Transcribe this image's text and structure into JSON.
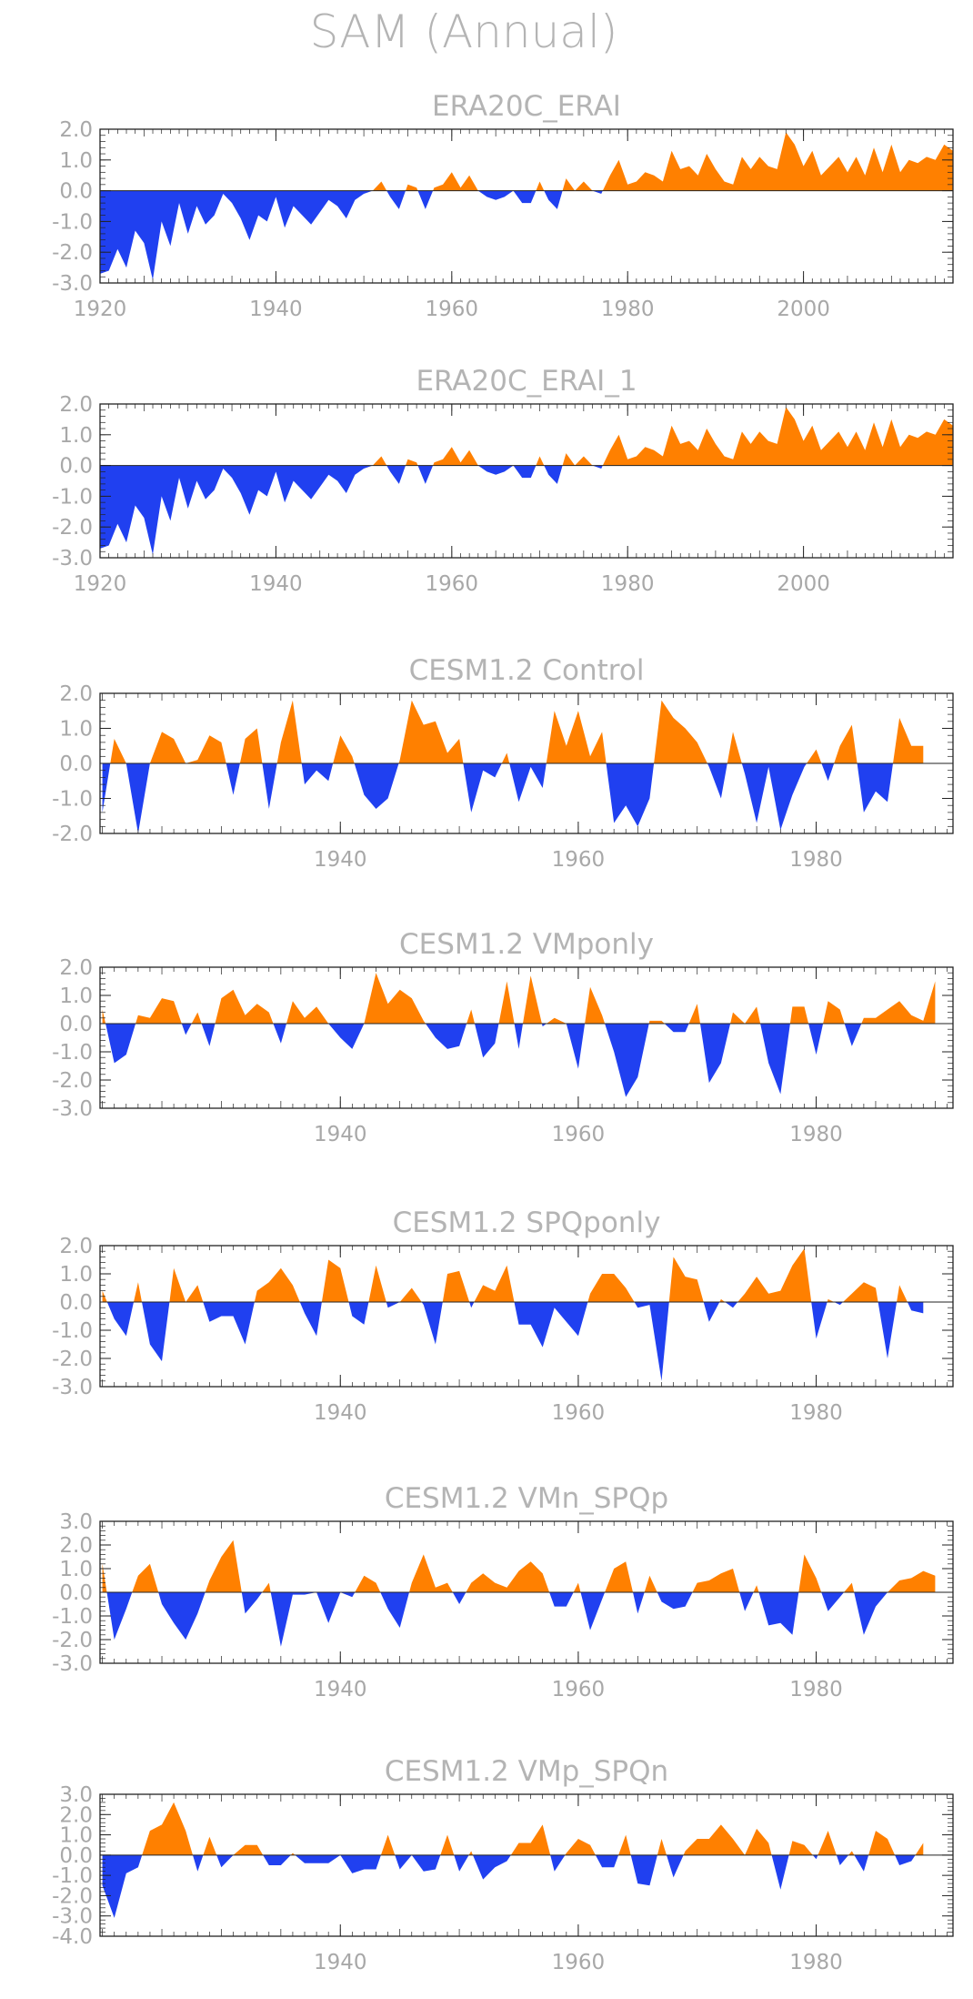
{
  "title": "SAM (Annual)",
  "colors": {
    "positive": "#ff8000",
    "negative": "#2040f0",
    "axis": "#222222",
    "text": "#b4b4b4"
  },
  "chart_data": [
    {
      "type": "area",
      "title": "ERA20C_ERAI",
      "x_start": 1920,
      "xlim": [
        1920,
        2017
      ],
      "ylim": [
        -3.0,
        2.0
      ],
      "yticks": [
        2.0,
        1.0,
        0.0,
        -1.0,
        -2.0,
        -3.0
      ],
      "ytick_labels": [
        "2.0",
        "1.0",
        "0.0",
        "-1.0",
        "-2.0",
        "-3.0"
      ],
      "xticks": [
        1920,
        1940,
        1960,
        1980,
        2000
      ],
      "xtick_labels": [
        "1920",
        "1940",
        "1960",
        "1980",
        "2000"
      ],
      "values": [
        -2.7,
        -2.6,
        -1.9,
        -2.5,
        -1.3,
        -1.7,
        -2.9,
        -1.0,
        -1.8,
        -0.4,
        -1.4,
        -0.5,
        -1.1,
        -0.8,
        -0.1,
        -0.4,
        -0.9,
        -1.6,
        -0.8,
        -1.0,
        -0.2,
        -1.2,
        -0.5,
        -0.8,
        -1.1,
        -0.7,
        -0.3,
        -0.5,
        -0.9,
        -0.3,
        -0.1,
        0.0,
        0.3,
        -0.2,
        -0.6,
        0.2,
        0.1,
        -0.6,
        0.1,
        0.2,
        0.6,
        0.1,
        0.5,
        0.0,
        -0.2,
        -0.3,
        -0.2,
        0.0,
        -0.4,
        -0.4,
        0.3,
        -0.3,
        -0.6,
        0.4,
        0.0,
        0.3,
        0.0,
        -0.1,
        0.5,
        1.0,
        0.2,
        0.3,
        0.6,
        0.5,
        0.3,
        1.3,
        0.7,
        0.8,
        0.5,
        1.2,
        0.7,
        0.3,
        0.2,
        1.1,
        0.7,
        1.1,
        0.8,
        0.7,
        1.9,
        1.5,
        0.8,
        1.3,
        0.5,
        0.8,
        1.1,
        0.6,
        1.1,
        0.5,
        1.4,
        0.6,
        1.5,
        0.6,
        1.0,
        0.9,
        1.1,
        1.0,
        1.5,
        1.3
      ]
    },
    {
      "type": "area",
      "title": "ERA20C_ERAI_1",
      "x_start": 1920,
      "xlim": [
        1920,
        2017
      ],
      "ylim": [
        -3.0,
        2.0
      ],
      "yticks": [
        2.0,
        1.0,
        0.0,
        -1.0,
        -2.0,
        -3.0
      ],
      "ytick_labels": [
        "2.0",
        "1.0",
        "0.0",
        "-1.0",
        "-2.0",
        "-3.0"
      ],
      "xticks": [
        1920,
        1940,
        1960,
        1980,
        2000
      ],
      "xtick_labels": [
        "1920",
        "1940",
        "1960",
        "1980",
        "2000"
      ],
      "values": [
        -2.7,
        -2.6,
        -1.9,
        -2.5,
        -1.3,
        -1.7,
        -2.9,
        -1.0,
        -1.8,
        -0.4,
        -1.4,
        -0.5,
        -1.1,
        -0.8,
        -0.1,
        -0.4,
        -0.9,
        -1.6,
        -0.8,
        -1.0,
        -0.2,
        -1.2,
        -0.5,
        -0.8,
        -1.1,
        -0.7,
        -0.3,
        -0.5,
        -0.9,
        -0.3,
        -0.1,
        0.0,
        0.3,
        -0.2,
        -0.6,
        0.2,
        0.1,
        -0.6,
        0.1,
        0.2,
        0.6,
        0.1,
        0.5,
        0.0,
        -0.2,
        -0.3,
        -0.2,
        0.0,
        -0.4,
        -0.4,
        0.3,
        -0.3,
        -0.6,
        0.4,
        0.0,
        0.3,
        0.0,
        -0.1,
        0.5,
        1.0,
        0.2,
        0.3,
        0.6,
        0.5,
        0.3,
        1.3,
        0.7,
        0.8,
        0.5,
        1.2,
        0.7,
        0.3,
        0.2,
        1.1,
        0.7,
        1.1,
        0.8,
        0.7,
        1.9,
        1.5,
        0.8,
        1.3,
        0.5,
        0.8,
        1.1,
        0.6,
        1.1,
        0.5,
        1.4,
        0.6,
        1.5,
        0.6,
        1.0,
        0.9,
        1.1,
        1.0,
        1.5,
        1.3
      ]
    },
    {
      "type": "area",
      "title": "CESM1.2 Control",
      "x_start": 1920,
      "xlim": [
        1919.8,
        1991.5
      ],
      "ylim": [
        -2.0,
        2.0
      ],
      "yticks": [
        2.0,
        1.0,
        0.0,
        -1.0,
        -2.0
      ],
      "ytick_labels": [
        "2.0",
        "1.0",
        "0.0",
        "-1.0",
        "-2.0"
      ],
      "xticks": [
        1940,
        1960,
        1980
      ],
      "xtick_labels": [
        "1940",
        "1960",
        "1980"
      ],
      "values": [
        -1.4,
        0.7,
        0.0,
        -2.0,
        0.0,
        0.9,
        0.7,
        0.0,
        0.1,
        0.8,
        0.6,
        -0.9,
        0.7,
        1.0,
        -1.3,
        0.6,
        1.8,
        -0.6,
        -0.2,
        -0.5,
        0.8,
        0.2,
        -0.9,
        -1.3,
        -1.0,
        0.1,
        1.8,
        1.1,
        1.2,
        0.3,
        0.7,
        -1.4,
        -0.2,
        -0.4,
        0.3,
        -1.1,
        -0.1,
        -0.7,
        1.5,
        0.5,
        1.5,
        0.2,
        0.9,
        -1.7,
        -1.2,
        -1.8,
        -1.0,
        1.8,
        1.3,
        1.0,
        0.6,
        -0.1,
        -1.0,
        0.9,
        -0.3,
        -1.7,
        -0.1,
        -1.9,
        -0.9,
        -0.1,
        0.4,
        -0.5,
        0.5,
        1.1,
        -1.4,
        -0.8,
        -1.1,
        1.3,
        0.5,
        0.5
      ]
    },
    {
      "type": "area",
      "title": "CESM1.2 VMponly",
      "x_start": 1920,
      "xlim": [
        1919.8,
        1991.5
      ],
      "ylim": [
        -3.0,
        2.0
      ],
      "yticks": [
        2.0,
        1.0,
        0.0,
        -1.0,
        -2.0,
        -3.0
      ],
      "ytick_labels": [
        "2.0",
        "1.0",
        "0.0",
        "-1.0",
        "-2.0",
        "-3.0"
      ],
      "xticks": [
        1940,
        1960,
        1980
      ],
      "xtick_labels": [
        "1940",
        "1960",
        "1980"
      ],
      "values": [
        0.5,
        -1.4,
        -1.1,
        0.3,
        0.2,
        0.9,
        0.8,
        -0.4,
        0.4,
        -0.8,
        0.9,
        1.2,
        0.3,
        0.7,
        0.4,
        -0.7,
        0.8,
        0.2,
        0.6,
        0.0,
        -0.5,
        -0.9,
        0.0,
        1.8,
        0.7,
        1.2,
        0.9,
        0.1,
        -0.5,
        -0.9,
        -0.8,
        0.5,
        -1.2,
        -0.7,
        1.5,
        -0.9,
        1.7,
        -0.1,
        0.2,
        0.0,
        -1.6,
        1.3,
        0.3,
        -1.0,
        -2.6,
        -1.9,
        0.1,
        0.1,
        -0.3,
        -0.3,
        0.7,
        -2.1,
        -1.4,
        0.4,
        0.0,
        0.6,
        -1.4,
        -2.5,
        0.6,
        0.6,
        -1.1,
        0.8,
        0.5,
        -0.8,
        0.2,
        0.2,
        0.5,
        0.8,
        0.3,
        0.1,
        1.5
      ]
    },
    {
      "type": "area",
      "title": "CESM1.2 SPQponly",
      "x_start": 1920,
      "xlim": [
        1919.8,
        1991.5
      ],
      "ylim": [
        -3.0,
        2.0
      ],
      "yticks": [
        2.0,
        1.0,
        0.0,
        -1.0,
        -2.0,
        -3.0
      ],
      "ytick_labels": [
        "2.0",
        "1.0",
        "0.0",
        "-1.0",
        "-2.0",
        "-3.0"
      ],
      "xticks": [
        1940,
        1960,
        1980
      ],
      "xtick_labels": [
        "1940",
        "1960",
        "1980"
      ],
      "values": [
        0.4,
        -0.6,
        -1.2,
        0.7,
        -1.5,
        -2.1,
        1.2,
        0.0,
        0.6,
        -0.7,
        -0.5,
        -0.5,
        -1.5,
        0.4,
        0.7,
        1.2,
        0.6,
        -0.4,
        -1.2,
        1.5,
        1.2,
        -0.5,
        -0.8,
        1.3,
        -0.2,
        0.0,
        0.5,
        -0.1,
        -1.5,
        1.0,
        1.1,
        -0.2,
        0.6,
        0.4,
        1.3,
        -0.8,
        -0.8,
        -1.6,
        -0.2,
        -0.7,
        -1.2,
        0.3,
        1.0,
        1.0,
        0.5,
        -0.2,
        -0.1,
        -2.8,
        1.6,
        0.9,
        0.8,
        -0.7,
        0.1,
        -0.2,
        0.3,
        0.9,
        0.3,
        0.4,
        1.3,
        1.9,
        -1.3,
        0.1,
        -0.1,
        0.3,
        0.7,
        0.5,
        -2.0,
        0.6,
        -0.3,
        -0.4
      ]
    },
    {
      "type": "area",
      "title": "CESM1.2 VMn_SPQp",
      "x_start": 1920,
      "xlim": [
        1919.8,
        1991.5
      ],
      "ylim": [
        -3.0,
        3.0
      ],
      "yticks": [
        3.0,
        2.0,
        1.0,
        0.0,
        -1.0,
        -2.0,
        -3.0
      ],
      "ytick_labels": [
        "3.0",
        "2.0",
        "1.0",
        "0.0",
        "-1.0",
        "-2.0",
        "-3.0"
      ],
      "xticks": [
        1940,
        1960,
        1980
      ],
      "xtick_labels": [
        "1940",
        "1960",
        "1980"
      ],
      "values": [
        1.2,
        -2.0,
        -0.7,
        0.7,
        1.2,
        -0.5,
        -1.3,
        -2.0,
        -0.9,
        0.5,
        1.5,
        2.2,
        -0.9,
        -0.3,
        0.4,
        -2.3,
        -0.1,
        -0.1,
        0.0,
        -1.3,
        0.0,
        -0.2,
        0.7,
        0.4,
        -0.7,
        -1.5,
        0.4,
        1.6,
        0.2,
        0.4,
        -0.5,
        0.4,
        0.8,
        0.4,
        0.2,
        0.9,
        1.3,
        0.8,
        -0.6,
        -0.6,
        0.4,
        -1.6,
        -0.3,
        1.0,
        1.3,
        -0.9,
        0.7,
        -0.4,
        -0.7,
        -0.6,
        0.4,
        0.5,
        0.8,
        1.0,
        -0.8,
        0.3,
        -1.4,
        -1.3,
        -1.8,
        1.6,
        0.6,
        -0.8,
        -0.2,
        0.4,
        -1.8,
        -0.6,
        0.0,
        0.5,
        0.6,
        0.9,
        0.7
      ]
    },
    {
      "type": "area",
      "title": "CESM1.2 VMp_SPQn",
      "x_start": 1920,
      "xlim": [
        1919.8,
        1991.5
      ],
      "ylim": [
        -4.0,
        3.0
      ],
      "yticks": [
        3.0,
        2.0,
        1.0,
        0.0,
        -1.0,
        -2.0,
        -3.0,
        -4.0
      ],
      "ytick_labels": [
        "3.0",
        "2.0",
        "1.0",
        "0.0",
        "-1.0",
        "-2.0",
        "-3.0",
        "-4.0"
      ],
      "xticks": [
        1940,
        1960,
        1980
      ],
      "xtick_labels": [
        "1940",
        "1960",
        "1980"
      ],
      "values": [
        -1.5,
        -3.1,
        -0.9,
        -0.6,
        1.2,
        1.5,
        2.6,
        1.2,
        -0.8,
        0.9,
        -0.6,
        0.0,
        0.5,
        0.5,
        -0.5,
        -0.5,
        0.1,
        -0.4,
        -0.4,
        -0.4,
        0.0,
        -0.9,
        -0.7,
        -0.7,
        1.0,
        -0.7,
        0.0,
        -0.8,
        -0.7,
        1.0,
        -0.8,
        0.2,
        -1.2,
        -0.6,
        -0.3,
        0.6,
        0.6,
        1.5,
        -0.8,
        0.1,
        0.8,
        0.5,
        -0.6,
        -0.6,
        1.0,
        -1.4,
        -1.5,
        0.8,
        -1.1,
        0.2,
        0.8,
        0.8,
        1.5,
        0.8,
        0.0,
        1.3,
        0.6,
        -1.7,
        0.7,
        0.5,
        -0.2,
        1.2,
        -0.5,
        0.2,
        -0.8,
        1.2,
        0.8,
        -0.5,
        -0.3,
        0.6
      ]
    }
  ]
}
